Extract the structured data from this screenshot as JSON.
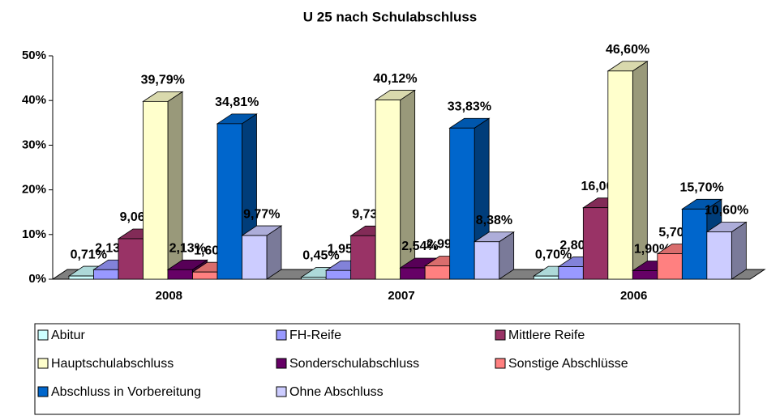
{
  "chart_data": {
    "type": "bar3d",
    "title": "U 25 nach Schulabschluss",
    "categories": [
      "2008",
      "2007",
      "2006"
    ],
    "ylim": [
      0,
      50
    ],
    "yticks": [
      {
        "value": 0,
        "label": "0%"
      },
      {
        "value": 10,
        "label": "10%"
      },
      {
        "value": 20,
        "label": "20%"
      },
      {
        "value": 30,
        "label": "30%"
      },
      {
        "value": 40,
        "label": "40%"
      },
      {
        "value": 50,
        "label": "50%"
      }
    ],
    "series": [
      {
        "name": "Abitur",
        "color": "#ccffff",
        "values": [
          0.71,
          0.45,
          0.7
        ],
        "value_labels": [
          "0,71%",
          "0,45%",
          "0,70%"
        ]
      },
      {
        "name": "FH-Reife",
        "color": "#9999ff",
        "values": [
          2.13,
          1.95,
          2.8
        ],
        "value_labels": [
          "2,13%",
          "1,95%",
          "2,80%"
        ]
      },
      {
        "name": "Mittlere Reife",
        "color": "#993366",
        "values": [
          9.06,
          9.73,
          16.0
        ],
        "value_labels": [
          "9,06%",
          "9,73%",
          "16,00%"
        ]
      },
      {
        "name": "Hauptschulabschluss",
        "color": "#ffffcc",
        "values": [
          39.79,
          40.12,
          46.6
        ],
        "value_labels": [
          "39,79%",
          "40,12%",
          "46,60%"
        ]
      },
      {
        "name": "Sonderschulabschluss",
        "color": "#660066",
        "values": [
          2.13,
          2.54,
          1.9
        ],
        "value_labels": [
          "2,13%",
          "2,54%",
          "1,90%"
        ]
      },
      {
        "name": "Sonstige Abschlüsse",
        "color": "#ff8080",
        "values": [
          1.6,
          2.99,
          5.7
        ],
        "value_labels": [
          "1,60%",
          "2,99%",
          "5,70%"
        ]
      },
      {
        "name": "Abschluss in Vorbereitung",
        "color": "#0066cc",
        "values": [
          34.81,
          33.83,
          15.7
        ],
        "value_labels": [
          "34,81%",
          "33,83%",
          "15,70%"
        ]
      },
      {
        "name": "Ohne Abschluss",
        "color": "#ccccff",
        "values": [
          9.77,
          8.38,
          10.6
        ],
        "value_labels": [
          "9,77%",
          "8,38%",
          "10,60%"
        ]
      }
    ]
  }
}
